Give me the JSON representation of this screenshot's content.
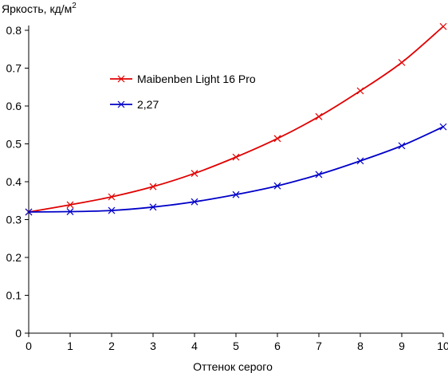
{
  "chart_data": {
    "type": "line",
    "title": "",
    "ylabel": "Яркость, кд/м",
    "ylabel_sup": "2",
    "xlabel": "Оттенок серого",
    "x": [
      0,
      1,
      2,
      3,
      4,
      5,
      6,
      7,
      8,
      9,
      10
    ],
    "xlim": [
      0,
      10
    ],
    "ylim": [
      0,
      0.8
    ],
    "x_ticks": [
      "0",
      "1",
      "2",
      "3",
      "4",
      "5",
      "6",
      "7",
      "8",
      "9",
      "10"
    ],
    "y_ticks": [
      "0",
      "0.1",
      "0.2",
      "0.3",
      "0.4",
      "0.5",
      "0.6",
      "0.7",
      "0.8"
    ],
    "y_tick_values": [
      0,
      0.1,
      0.2,
      0.3,
      0.4,
      0.5,
      0.6,
      0.7,
      0.8
    ],
    "grid": false,
    "legend_position": "upper-left",
    "series": [
      {
        "name": "Maibenben Light 16 Pro",
        "color": "#e00000",
        "marker": "x",
        "values": [
          0.32,
          0.339,
          0.36,
          0.387,
          0.422,
          0.465,
          0.514,
          0.572,
          0.64,
          0.715,
          0.81
        ]
      },
      {
        "name": "2,27",
        "color": "#0000c8",
        "marker": "x",
        "values": [
          0.32,
          0.321,
          0.324,
          0.333,
          0.347,
          0.366,
          0.389,
          0.419,
          0.455,
          0.495,
          0.545
        ]
      }
    ]
  }
}
